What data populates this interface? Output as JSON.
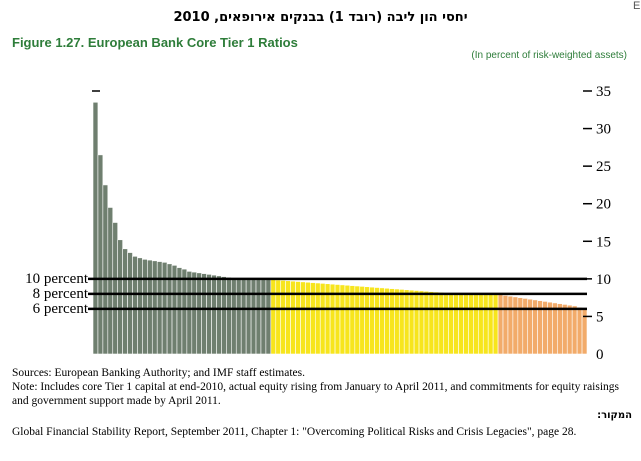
{
  "page_marker": "E",
  "hebrew_title": "יחסי הון ליבה (רובד 1) בבנקים אירופאים, 2010",
  "figure_title": "Figure 1.27. European Bank Core Tier 1 Ratios",
  "unit_note": "(In percent of risk-weighted assets)",
  "colors": {
    "gray": "#6f7f6f",
    "yellow": "#f7e51d",
    "orange": "#f2ab6a",
    "title_green": "#2e7d3a"
  },
  "chart_data": {
    "type": "bar",
    "title": "European Bank Core Tier 1 Ratios",
    "ylabel": "",
    "xlabel": "",
    "ylim": [
      0,
      35
    ],
    "yticks": [
      0,
      5,
      10,
      15,
      20,
      25,
      30,
      35
    ],
    "ytick_labels": [
      "0",
      "5",
      "10",
      "15",
      "20",
      "25",
      "30",
      "35"
    ],
    "series": [
      {
        "color_group": "gray",
        "values": [
          33.5,
          26.5,
          22.5,
          19.5,
          17.5,
          15.2,
          14.0,
          13.5,
          13.0,
          12.8,
          12.6,
          12.5,
          12.4,
          12.3,
          12.2,
          12.0,
          11.8,
          11.5,
          11.3,
          11.0,
          10.9,
          10.8,
          10.7,
          10.6,
          10.5,
          10.4,
          10.3,
          10.2,
          10.1,
          10.05,
          10.0,
          10.0,
          10.0,
          10.0,
          10.0,
          10.0
        ]
      },
      {
        "color_group": "yellow",
        "values": [
          9.9,
          9.85,
          9.8,
          9.75,
          9.7,
          9.65,
          9.6,
          9.55,
          9.5,
          9.45,
          9.4,
          9.35,
          9.3,
          9.25,
          9.2,
          9.15,
          9.1,
          9.05,
          9.0,
          8.95,
          8.9,
          8.85,
          8.8,
          8.75,
          8.7,
          8.65,
          8.6,
          8.55,
          8.5,
          8.45,
          8.4,
          8.35,
          8.3,
          8.25,
          8.2,
          8.15,
          8.1,
          8.07,
          8.05,
          8.03,
          8.02,
          8.01,
          8.0,
          8.0,
          8.0,
          8.0
        ]
      },
      {
        "color_group": "orange",
        "values": [
          7.9,
          7.8,
          7.7,
          7.6,
          7.5,
          7.4,
          7.3,
          7.2,
          7.1,
          7.0,
          6.9,
          6.8,
          6.7,
          6.6,
          6.5,
          6.4,
          6.2,
          6.0
        ]
      }
    ],
    "threshold_lines": [
      {
        "label": "10 percent",
        "value": 10
      },
      {
        "label": "8 percent",
        "value": 8
      },
      {
        "label": "6 percent",
        "value": 6
      }
    ]
  },
  "footer": {
    "sources": "Sources: European Banking Authority; and IMF staff estimates.",
    "note": "Note: Includes core Tier 1 capital at end-2010, actual equity rising from January to April 2011, and commitments for equity raisings and government support made by April 2011.",
    "source_heading": "המקור:",
    "citation": "Global Financial Stability Report, September 2011, Chapter 1: \"Overcoming Political Risks and Crisis Legacies\", page 28."
  }
}
